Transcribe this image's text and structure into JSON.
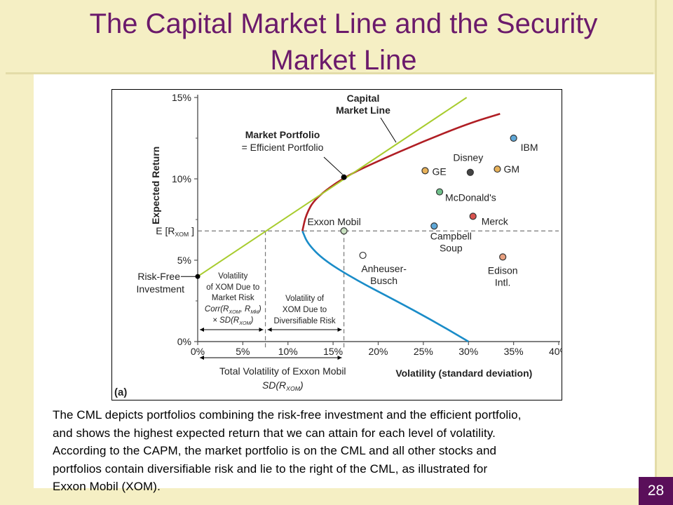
{
  "slide": {
    "title_line1": "The Capital Market Line and the Security",
    "title_line2": "Market Line",
    "caption": [
      "The CML depicts portfolios combining the risk-free investment and the efficient portfolio,",
      "and shows the highest expected return that we can attain for each level of volatility.",
      "According to the CAPM, the market portfolio is on the CML and all other stocks and",
      "portfolios contain diversifiable risk and lie to the right of the CML, as illustrated for",
      "Exxon Mobil (XOM)."
    ],
    "page_number": "28"
  },
  "colors": {
    "title": "#6b1a6b",
    "cml": "#a8cc2e",
    "frontier_upper": "#b01e24",
    "frontier_lower": "#1a8cc8",
    "dashed": "#777777",
    "page_badge": "#5a0f5a"
  },
  "chart_data": {
    "type": "scatter",
    "panel_label": "(a)",
    "xlabel": "Volatility (standard deviation)",
    "ylabel": "Expected Return",
    "xlim": [
      0,
      40
    ],
    "ylim": [
      0,
      15
    ],
    "x_ticks": [
      "0%",
      "5%",
      "10%",
      "15%",
      "20%",
      "25%",
      "30%",
      "35%",
      "40%"
    ],
    "x_tick_values": [
      0,
      5,
      10,
      15,
      20,
      25,
      30,
      35,
      40
    ],
    "y_ticks": [
      "0%",
      "5%",
      "10%",
      "15%"
    ],
    "y_tick_values": [
      0,
      5,
      10,
      15
    ],
    "e_rxom_label": "E [R",
    "e_rxom_sub": "XOM",
    "e_rxom_close": "]",
    "e_rxom_value": 6.8,
    "risk_free_rate": 4.0,
    "efficient_frontier": {
      "min_variance_point": [
        11.6,
        6.8
      ],
      "upper": [
        [
          11.6,
          6.8
        ],
        [
          12.0,
          7.8
        ],
        [
          13.0,
          8.8
        ],
        [
          16.2,
          10.1
        ],
        [
          20,
          11.1
        ],
        [
          25,
          12.3
        ],
        [
          30,
          13.4
        ],
        [
          33.5,
          14.0
        ]
      ],
      "lower": [
        [
          11.6,
          6.8
        ],
        [
          12.2,
          6.0
        ],
        [
          14.0,
          5.0
        ],
        [
          17.5,
          3.8
        ],
        [
          22,
          2.5
        ],
        [
          26,
          1.3
        ],
        [
          30,
          0
        ]
      ]
    },
    "cml": {
      "from": [
        0,
        4.0
      ],
      "to": [
        29.8,
        15.0
      ]
    },
    "market_portfolio": [
      16.2,
      10.1
    ],
    "stocks": [
      {
        "name": "IBM",
        "x": 35.0,
        "y": 12.5,
        "color": "#5fa8d8"
      },
      {
        "name": "Disney",
        "x": 30.2,
        "y": 10.4,
        "color": "#444444"
      },
      {
        "name": "GE",
        "x": 25.2,
        "y": 10.5,
        "color": "#e8b25a"
      },
      {
        "name": "GM",
        "x": 33.2,
        "y": 10.6,
        "color": "#e8b25a"
      },
      {
        "name": "McDonald's",
        "x": 26.8,
        "y": 9.2,
        "color": "#6fbf8a"
      },
      {
        "name": "Merck",
        "x": 30.5,
        "y": 7.7,
        "color": "#d9534f"
      },
      {
        "name": "Campbell Soup",
        "x": 26.2,
        "y": 7.1,
        "color": "#5fa8d8"
      },
      {
        "name": "Exxon Mobil",
        "x": 16.2,
        "y": 6.8,
        "color": "#c8e0c0"
      },
      {
        "name": "Anheuser-Busch",
        "x": 18.3,
        "y": 5.3,
        "color": "#ffffff"
      },
      {
        "name": "Edison Intl.",
        "x": 33.8,
        "y": 5.2,
        "color": "#e8a080"
      }
    ],
    "annotations": {
      "cml_label": [
        "Capital",
        "Market Line"
      ],
      "market_portfolio_label": [
        "Market Portfolio",
        "= Efficient Portfolio"
      ],
      "risk_free_label": [
        "Risk-Free",
        "Investment"
      ],
      "exxon_label": "Exxon Mobil",
      "disney_label": "Disney",
      "ibm_label": "IBM",
      "ge_label": "GE",
      "gm_label": "GM",
      "mcdonalds_label": "McDonald's",
      "merck_label": "Merck",
      "campbell_label": [
        "Campbell",
        "Soup"
      ],
      "anheuser_label": [
        "Anheuser-",
        "Busch"
      ],
      "edison_label": [
        "Edison",
        "Intl."
      ],
      "market_risk_label": [
        "Volatility",
        "of XOM Due to",
        "Market Risk",
        "Corr(R",
        "XOM",
        ", R",
        "Mkt",
        ")",
        "× SD(R",
        "XOM",
        ")"
      ],
      "diversifiable_label": [
        "Volatility of",
        "XOM Due to",
        "Diversifiable Risk"
      ],
      "total_vol_label": [
        "Total Volatility of Exxon Mobil",
        "SD(R",
        "XOM",
        ")"
      ],
      "market_risk_x": 7.5,
      "total_vol_x": 16.2
    }
  }
}
